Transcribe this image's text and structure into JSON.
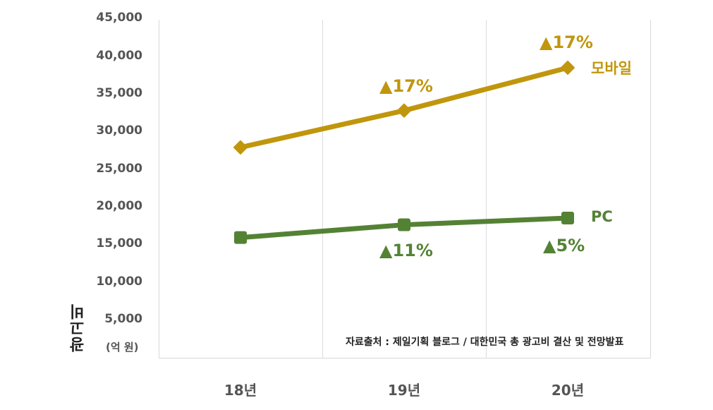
{
  "chart_data": {
    "type": "line",
    "title": "",
    "xlabel": "",
    "ylabel": "광고비",
    "y_unit": "(억 원)",
    "ylim": [
      0,
      45000
    ],
    "y_ticks": [
      "45,000",
      "40,000",
      "35,000",
      "30,000",
      "25,000",
      "20,000",
      "15,000",
      "10,000",
      "5,000"
    ],
    "categories": [
      "18년",
      "19년",
      "20년"
    ],
    "grid": {
      "vertical": true,
      "horizontal": false
    },
    "series": [
      {
        "name": "모바일",
        "color": "#c0960c",
        "marker": "diamond",
        "values": [
          27900,
          32800,
          38500
        ],
        "growth_labels": [
          "",
          "▲17%",
          "▲17%"
        ]
      },
      {
        "name": "PC",
        "color": "#548235",
        "marker": "square",
        "values": [
          15900,
          17600,
          18500
        ],
        "growth_labels": [
          "",
          "▲11%",
          "▲5%"
        ]
      }
    ],
    "annotations": [
      "자료출처 : 제일기획 블로그 / 대한민국 총 광고비 결산 및 전망발표"
    ],
    "legend": "inline labels at line ends"
  },
  "labels": {
    "mobile_name": "모바일",
    "pc_name": "PC",
    "mobile_19": "▲17%",
    "mobile_20": "▲17%",
    "pc_19": "▲11%",
    "pc_20": "▲5%",
    "source": "자료출처 : 제일기획 블로그 / 대한민국 총 광고비 결산 및 전망발표",
    "ylabel": "광고비",
    "unit": "(억 원)"
  }
}
